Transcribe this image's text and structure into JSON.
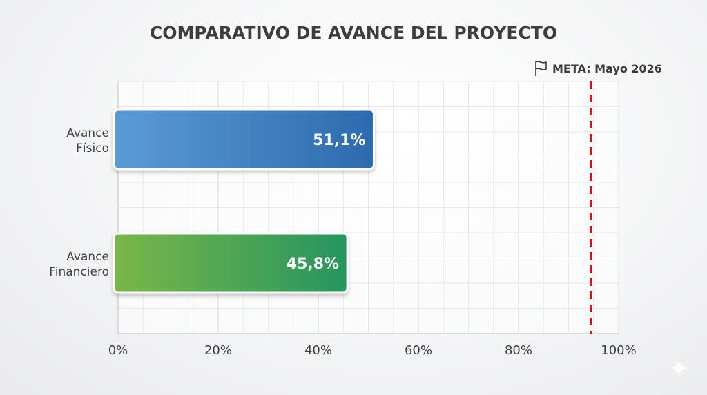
{
  "chart_data": {
    "type": "bar",
    "orientation": "horizontal",
    "title": "COMPARATIVO DE AVANCE DEL PROYECTO",
    "categories": [
      [
        "Avance",
        "Físico"
      ],
      [
        "Avance",
        "Financiero"
      ]
    ],
    "values": [
      51.1,
      45.8
    ],
    "value_labels": [
      "51,1%",
      "45,8%"
    ],
    "xlim": [
      0,
      100
    ],
    "x_ticks": [
      0,
      20,
      40,
      60,
      80,
      100
    ],
    "x_tick_labels": [
      "0%",
      "20%",
      "40%",
      "60%",
      "80%",
      "100%"
    ],
    "grid": true,
    "colors": {
      "bar_1_start": "#5b9bd5",
      "bar_1_end": "#2e6aaf",
      "bar_2_start": "#7ab648",
      "bar_2_end": "#269560",
      "target_line": "#c8141f"
    },
    "target": {
      "label": "META: Mayo 2026",
      "value": 94.5,
      "icon": "flag-icon"
    }
  }
}
